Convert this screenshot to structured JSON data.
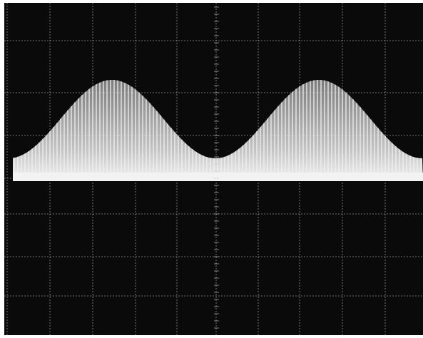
{
  "image": {
    "subject": "oscilloscope-screen-photo",
    "colors": {
      "screen": "#0a0a0a",
      "graticule": "#c9c9c9",
      "trace": "#f2f2f2",
      "border": "#ffffff"
    }
  }
}
